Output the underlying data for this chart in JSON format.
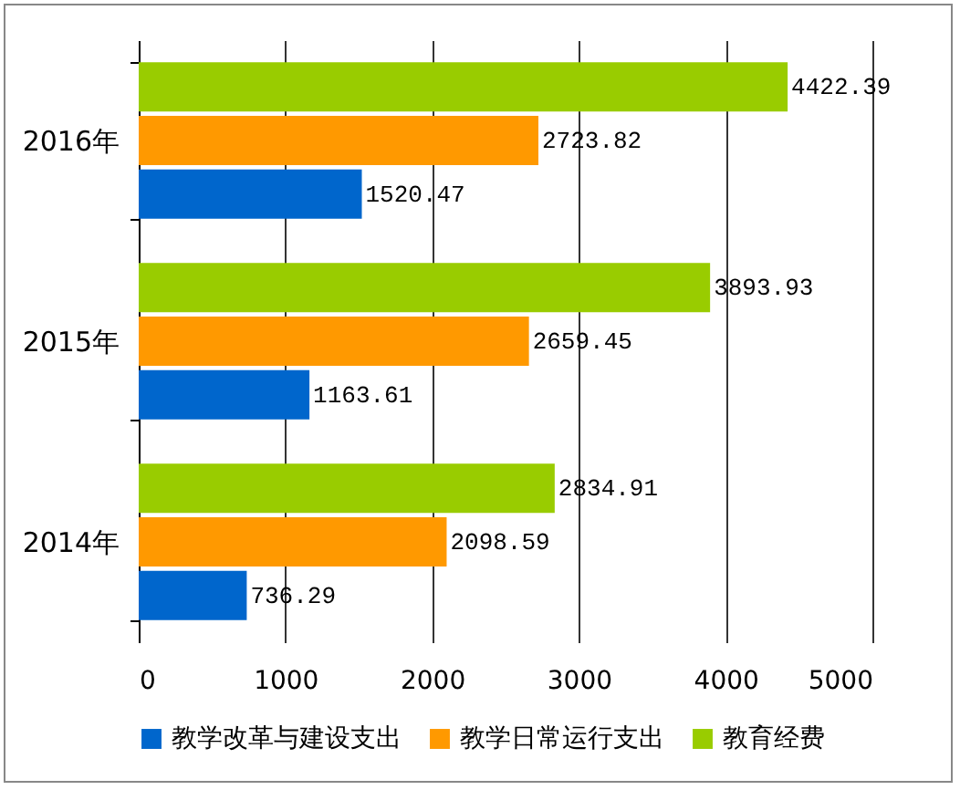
{
  "chart_data": {
    "type": "bar",
    "orientation": "horizontal",
    "categories": [
      "2016年",
      "2015年",
      "2014年"
    ],
    "series": [
      {
        "name": "教学改革与建设支出",
        "color": "#0066cc",
        "values": [
          1520.47,
          1163.61,
          736.29
        ]
      },
      {
        "name": "教学日常运行支出",
        "color": "#ff9900",
        "values": [
          2723.82,
          2659.45,
          2098.59
        ]
      },
      {
        "name": "教育经费",
        "color": "#99cc00",
        "values": [
          4422.39,
          3893.93,
          2834.91
        ]
      }
    ],
    "xlim": [
      0,
      5000
    ],
    "xticks": [
      0,
      1000,
      2000,
      3000,
      4000,
      5000
    ],
    "grid": "x",
    "legend": "bottom",
    "data_labels": true
  }
}
